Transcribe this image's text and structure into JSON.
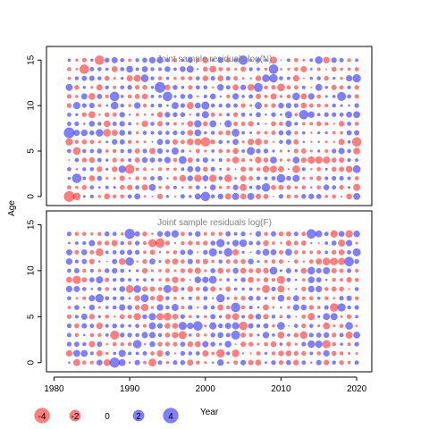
{
  "chart_data": [
    {
      "type": "scatter",
      "subtype": "bubble",
      "title": "Joint sample residuals log(N)",
      "xlabel": "",
      "ylabel": "Age",
      "xlim": [
        1979,
        2022
      ],
      "ylim": [
        -1,
        16.5
      ],
      "x_ticks": [],
      "y_ticks": [
        0,
        5,
        10,
        15
      ],
      "x_values": [
        1982,
        2020
      ],
      "y_values": [
        0,
        15
      ],
      "series": [
        {
          "name": "positive",
          "color": "#0000ff"
        },
        {
          "name": "negative",
          "color": "#ff0000"
        }
      ],
      "points": [
        {
          "x": 1982,
          "y": 0,
          "v": -4.0
        },
        {
          "x": 1982,
          "y": 7,
          "v": 4.0
        },
        {
          "x": 1983,
          "y": 2,
          "v": 3.0
        },
        {
          "x": 1984,
          "y": 14,
          "v": -3.0
        },
        {
          "x": 1986,
          "y": 15,
          "v": -3.0
        },
        {
          "x": 1988,
          "y": 11,
          "v": 3.0
        },
        {
          "x": 1990,
          "y": 3,
          "v": -3.0
        },
        {
          "x": 1994,
          "y": 12,
          "v": 4.0
        },
        {
          "x": 1995,
          "y": 11,
          "v": 3.0
        },
        {
          "x": 2000,
          "y": 0,
          "v": 3.0
        },
        {
          "x": 2000,
          "y": 6,
          "v": -3.0
        },
        {
          "x": 2005,
          "y": 15,
          "v": 3.0
        },
        {
          "x": 2009,
          "y": 14,
          "v": 3.0
        },
        {
          "x": 2013,
          "y": 9,
          "v": 3.0
        },
        {
          "x": 2020,
          "y": 6,
          "v": -3.0
        }
      ],
      "values_note": "Dense grid of residual bubbles for every Year (1982-2020) and Age (0-15); values shown are generated procedurally for the remaining grid cells."
    },
    {
      "type": "scatter",
      "subtype": "bubble",
      "title": "Joint sample residuals log(F)",
      "xlabel": "Year",
      "ylabel": "Age",
      "xlim": [
        1979,
        2022
      ],
      "ylim": [
        -1,
        16.5
      ],
      "x_ticks": [
        1980,
        1990,
        2000,
        2010,
        2020
      ],
      "y_ticks": [
        0,
        5,
        10,
        15
      ],
      "x_values": [
        1982,
        2020
      ],
      "y_values": [
        0,
        14
      ],
      "series": [
        {
          "name": "positive",
          "color": "#0000ff"
        },
        {
          "name": "negative",
          "color": "#ff0000"
        }
      ],
      "points": [
        {
          "x": 1988,
          "y": 0,
          "v": 3.5
        },
        {
          "x": 1990,
          "y": 14,
          "v": 3.5
        },
        {
          "x": 1994,
          "y": 13,
          "v": -3.0
        },
        {
          "x": 1999,
          "y": 4,
          "v": 3.0
        },
        {
          "x": 2004,
          "y": 6,
          "v": 3.0
        },
        {
          "x": 2014,
          "y": 14,
          "v": 3.0
        },
        {
          "x": 2019,
          "y": 11,
          "v": 3.0
        }
      ]
    }
  ],
  "legend": {
    "items": [
      {
        "label": "-4",
        "value": -4
      },
      {
        "label": "-2",
        "value": -2
      },
      {
        "label": "0",
        "value": 0
      },
      {
        "label": "2",
        "value": 2
      },
      {
        "label": "4",
        "value": 4
      }
    ],
    "title": "Year"
  },
  "colors": {
    "positive": "#0000ff",
    "negative": "#ff0000",
    "axis": "#000000",
    "panel_title": "#808080"
  }
}
